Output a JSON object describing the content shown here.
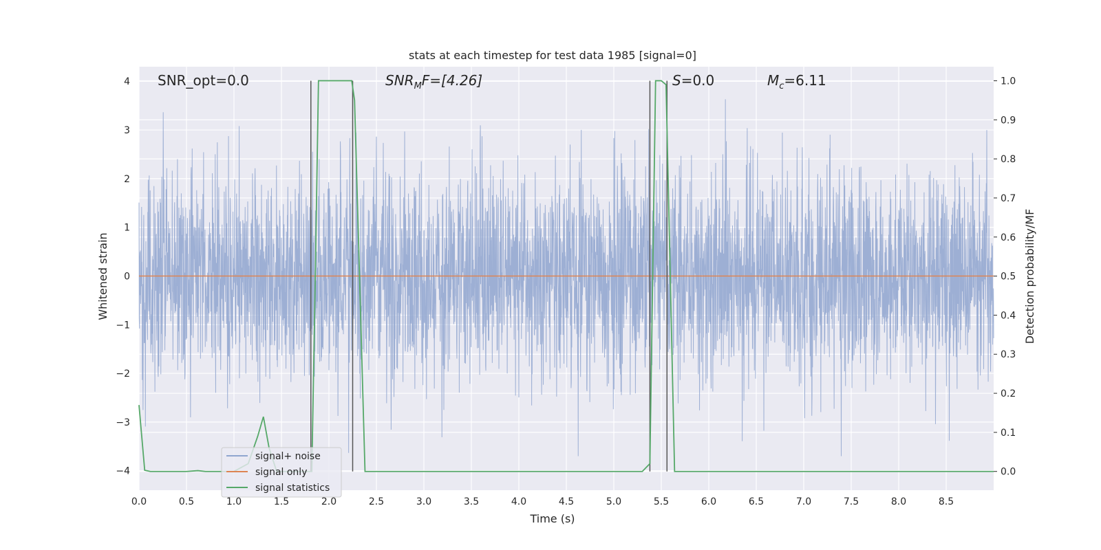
{
  "chart_data": {
    "type": "line",
    "title": "stats at each timestep for test data 1985 [signal=0]",
    "xlabel": "Time (s)",
    "ylabel": "Whitened strain",
    "ylabel_right": "Detection probability/MF",
    "xlim": [
      0.0,
      9.0
    ],
    "ylim": [
      -4.4,
      4.3
    ],
    "ylim_right": [
      -0.048,
      1.036
    ],
    "x_ticks": [
      "0.0",
      "0.5",
      "1.0",
      "1.5",
      "2.0",
      "2.5",
      "3.0",
      "3.5",
      "4.0",
      "4.5",
      "5.0",
      "5.5",
      "6.0",
      "6.5",
      "7.0",
      "7.5",
      "8.0",
      "8.5"
    ],
    "x_tick_values": [
      0.0,
      0.5,
      1.0,
      1.5,
      2.0,
      2.5,
      3.0,
      3.5,
      4.0,
      4.5,
      5.0,
      5.5,
      6.0,
      6.5,
      7.0,
      7.5,
      8.0,
      8.5
    ],
    "y_ticks": [
      "4",
      "3",
      "2",
      "1",
      "0",
      "−1",
      "−2",
      "−3",
      "−4"
    ],
    "y_tick_values": [
      4,
      3,
      2,
      1,
      0,
      -1,
      -2,
      -3,
      -4
    ],
    "y_ticks_right": [
      "1.0",
      "0.9",
      "0.8",
      "0.7",
      "0.6",
      "0.5",
      "0.4",
      "0.3",
      "0.2",
      "0.1",
      "0.0"
    ],
    "y_tick_values_right": [
      1.0,
      0.9,
      0.8,
      0.7,
      0.6,
      0.5,
      0.4,
      0.3,
      0.2,
      0.1,
      0.0
    ],
    "grid": true,
    "legend_position": "lower-left",
    "annotations": {
      "snr_opt": "SNR_opt=0.0",
      "snr_mf_main": "SNR",
      "snr_mf_sub": "M",
      "snr_mf_rest": "F=[4.26]",
      "s_main": "S",
      "s_rest": "=0.0",
      "mc_main": "M",
      "mc_sub": "c",
      "mc_rest": "=6.11"
    },
    "series": [
      {
        "name": "signal+ noise",
        "color": "#8fa5cf",
        "kind": "noise",
        "envelope": {
          "typical_low": -1.3,
          "typical_high": 1.3,
          "spike_max": 3.9,
          "spike_min": -3.7
        },
        "mean": 0.0
      },
      {
        "name": "signal only",
        "color": "#dd8452",
        "kind": "line",
        "x": [
          0.0,
          9.0
        ],
        "y": [
          0.0,
          0.0
        ]
      },
      {
        "name": "signal statistics",
        "color": "#55a868",
        "axis": "right",
        "x": [
          0.0,
          0.06,
          0.12,
          0.5,
          0.62,
          0.7,
          1.0,
          1.15,
          1.25,
          1.31,
          1.37,
          1.45,
          1.78,
          1.82,
          1.86,
          1.89,
          2.24,
          2.27,
          2.38,
          2.45,
          3.0,
          4.0,
          5.0,
          5.3,
          5.38,
          5.44,
          5.5,
          5.55,
          5.64,
          5.7,
          6.0,
          7.0,
          8.0,
          9.0
        ],
        "y": [
          0.17,
          0.003,
          0.0,
          0.0,
          0.002,
          0.0,
          0.0,
          0.02,
          0.09,
          0.14,
          0.06,
          0.0,
          0.0,
          0.0,
          0.55,
          1.0,
          1.0,
          0.95,
          0.0,
          0.0,
          0.0,
          0.0,
          0.0,
          0.0,
          0.02,
          1.0,
          1.0,
          0.99,
          0.0,
          0.0,
          0.0,
          0.0,
          0.0,
          0.0
        ]
      }
    ],
    "vertical_markers": [
      1.81,
      2.25,
      5.38,
      5.56
    ]
  }
}
